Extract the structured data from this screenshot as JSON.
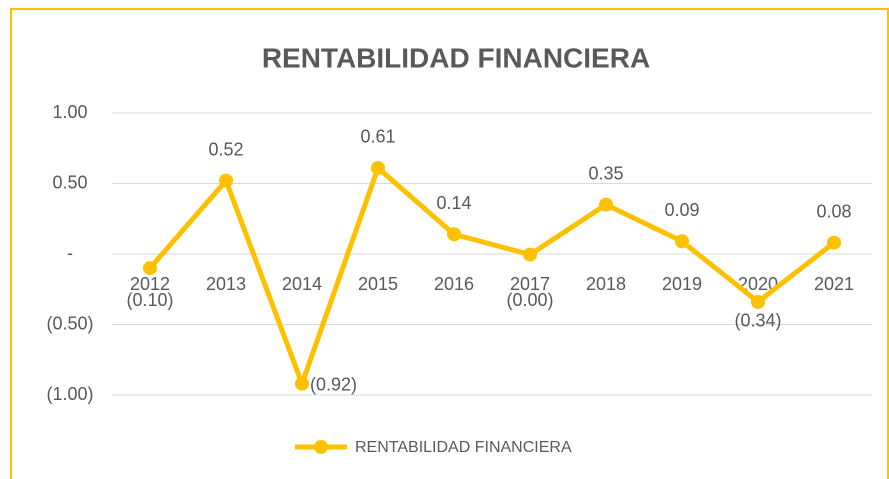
{
  "chart_data": {
    "type": "line",
    "title": "RENTABILIDAD FINANCIERA",
    "categories": [
      "2012",
      "2013",
      "2014",
      "2015",
      "2016",
      "2017",
      "2018",
      "2019",
      "2020",
      "2021"
    ],
    "series": [
      {
        "name": "RENTABILIDAD FINANCIERA",
        "color": "#ffc000",
        "values": [
          -0.1,
          0.52,
          -0.92,
          0.61,
          0.14,
          -0.004,
          0.35,
          0.09,
          -0.34,
          0.08
        ],
        "value_labels": [
          "(0.10)",
          "0.52",
          "(0.92)",
          "0.61",
          "0.14",
          "(0.00)",
          "0.35",
          "0.09",
          "(0.34)",
          "0.08"
        ]
      }
    ],
    "ylim": [
      -1,
      1
    ],
    "yticks": [
      {
        "value": 1,
        "label": "1.00"
      },
      {
        "value": 0.5,
        "label": "0.50"
      },
      {
        "value": 0,
        "label": "-"
      },
      {
        "value": -0.5,
        "label": "(0.50)"
      },
      {
        "value": -1,
        "label": "(1.00)"
      }
    ],
    "grid": true,
    "legend": "bottom"
  }
}
